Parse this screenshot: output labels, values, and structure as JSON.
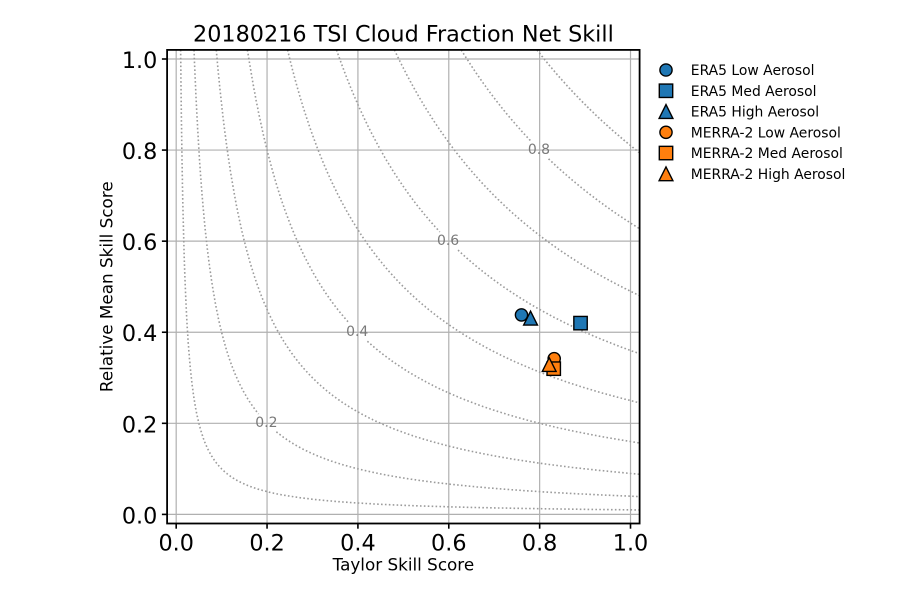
{
  "chart_data": {
    "type": "scatter",
    "title": "20180216 TSI Cloud Fraction Net Skill",
    "xlabel": "Taylor Skill Score",
    "ylabel": "Relative Mean Skill Score",
    "xlim": [
      -0.02,
      1.02
    ],
    "ylim": [
      -0.02,
      1.02
    ],
    "xticks": [
      0.0,
      0.2,
      0.4,
      0.6,
      0.8,
      1.0
    ],
    "yticks": [
      0.0,
      0.2,
      0.4,
      0.6,
      0.8,
      1.0
    ],
    "xtick_labels": [
      "0.0",
      "0.2",
      "0.4",
      "0.6",
      "0.8",
      "1.0"
    ],
    "ytick_labels": [
      "0.0",
      "0.2",
      "0.4",
      "0.6",
      "0.8",
      "1.0"
    ],
    "grid": true,
    "colors": {
      "era5": "#1f77b4",
      "merra2": "#ff7f0e",
      "grid": "#b0b0b0",
      "contour": "#9b9b9b",
      "contour_label": "#7a7a7a",
      "marker_edge": "#000000"
    },
    "contours": {
      "description": "dotted iso-skill curves sqrt(x*y) = level",
      "levels": [
        0.1,
        0.2,
        0.3,
        0.4,
        0.5,
        0.6,
        0.7,
        0.8,
        0.9
      ],
      "labeled_levels": [
        0.2,
        0.4,
        0.6,
        0.8
      ],
      "labels": [
        "0.2",
        "0.4",
        "0.6",
        "0.8"
      ]
    },
    "series": [
      {
        "name": "ERA5 Low Aerosol",
        "marker": "circle",
        "color": "#1f77b4",
        "x": 0.76,
        "y": 0.438
      },
      {
        "name": "ERA5 Med Aerosol",
        "marker": "square",
        "color": "#1f77b4",
        "x": 0.89,
        "y": 0.42
      },
      {
        "name": "ERA5 High Aerosol",
        "marker": "triangle",
        "color": "#1f77b4",
        "x": 0.78,
        "y": 0.431
      },
      {
        "name": "MERRA-2 Low Aerosol",
        "marker": "circle",
        "color": "#ff7f0e",
        "x": 0.832,
        "y": 0.342
      },
      {
        "name": "MERRA-2 Med Aerosol",
        "marker": "square",
        "color": "#ff7f0e",
        "x": 0.831,
        "y": 0.32
      },
      {
        "name": "MERRA-2 High Aerosol",
        "marker": "triangle",
        "color": "#ff7f0e",
        "x": 0.821,
        "y": 0.329
      }
    ],
    "legend": {
      "position": "outside-right-top",
      "items": [
        "ERA5 Low Aerosol",
        "ERA5 Med Aerosol",
        "ERA5 High Aerosol",
        "MERRA-2 Low Aerosol",
        "MERRA-2 Med Aerosol",
        "MERRA-2 High Aerosol"
      ]
    }
  }
}
